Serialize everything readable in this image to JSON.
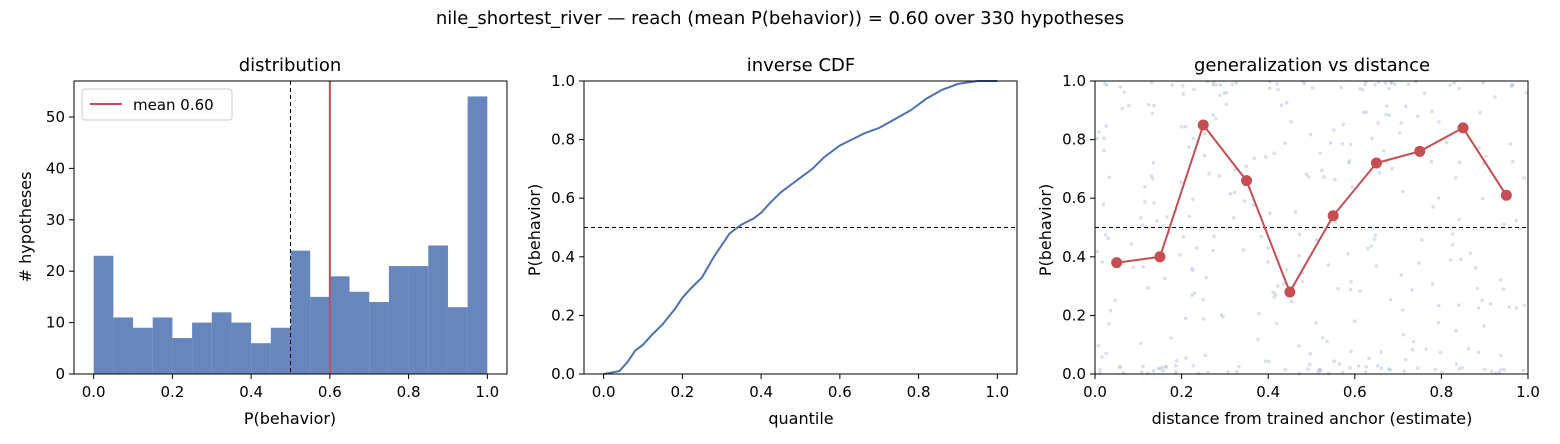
{
  "figure": {
    "suptitle": "nile_shortest_river  —  reach (mean P(behavior)) = 0.60  over 330 hypotheses"
  },
  "colors": {
    "bar": "#4c72b0",
    "mean_line": "#c44e52",
    "cdf_line": "#4c72b0",
    "scatter_points": "#a8b8d8",
    "binned_line": "#c44e52",
    "reference_line": "#000000"
  },
  "chart_data": [
    {
      "type": "bar",
      "title": "distribution",
      "xlabel": "P(behavior)",
      "ylabel": "# hypotheses",
      "bin_edges": [
        0.0,
        0.05,
        0.1,
        0.15,
        0.2,
        0.25,
        0.3,
        0.35,
        0.4,
        0.45,
        0.5,
        0.55,
        0.6,
        0.65,
        0.7,
        0.75,
        0.8,
        0.85,
        0.9,
        0.95,
        1.0
      ],
      "values": [
        23,
        11,
        9,
        11,
        7,
        10,
        12,
        10,
        6,
        9,
        24,
        15,
        19,
        16,
        14,
        21,
        21,
        25,
        13,
        54
      ],
      "xlim": [
        -0.05,
        1.05
      ],
      "ylim": [
        0,
        57
      ],
      "xticks": [
        "0.0",
        "0.2",
        "0.4",
        "0.6",
        "0.8",
        "1.0"
      ],
      "yticks": [
        "0",
        "10",
        "20",
        "30",
        "40",
        "50"
      ],
      "threshold_line": 0.5,
      "mean_line": 0.6,
      "legend": {
        "label": "mean 0.60",
        "placement": "upper left"
      }
    },
    {
      "type": "line",
      "title": "inverse CDF",
      "xlabel": "quantile",
      "ylabel": "P(behavior)",
      "points": [
        [
          0.0,
          0.0
        ],
        [
          0.04,
          0.01
        ],
        [
          0.06,
          0.04
        ],
        [
          0.08,
          0.08
        ],
        [
          0.1,
          0.1
        ],
        [
          0.12,
          0.13
        ],
        [
          0.15,
          0.17
        ],
        [
          0.18,
          0.22
        ],
        [
          0.2,
          0.26
        ],
        [
          0.22,
          0.29
        ],
        [
          0.25,
          0.33
        ],
        [
          0.28,
          0.4
        ],
        [
          0.3,
          0.44
        ],
        [
          0.32,
          0.48
        ],
        [
          0.35,
          0.51
        ],
        [
          0.38,
          0.53
        ],
        [
          0.4,
          0.55
        ],
        [
          0.42,
          0.58
        ],
        [
          0.45,
          0.62
        ],
        [
          0.48,
          0.65
        ],
        [
          0.5,
          0.67
        ],
        [
          0.53,
          0.7
        ],
        [
          0.56,
          0.74
        ],
        [
          0.6,
          0.78
        ],
        [
          0.63,
          0.8
        ],
        [
          0.66,
          0.82
        ],
        [
          0.7,
          0.84
        ],
        [
          0.74,
          0.87
        ],
        [
          0.78,
          0.9
        ],
        [
          0.82,
          0.94
        ],
        [
          0.86,
          0.97
        ],
        [
          0.9,
          0.99
        ],
        [
          0.95,
          1.0
        ],
        [
          1.0,
          1.0
        ]
      ],
      "xlim": [
        -0.05,
        1.05
      ],
      "ylim": [
        0,
        1.0
      ],
      "xticks": [
        "0.0",
        "0.2",
        "0.4",
        "0.6",
        "0.8",
        "1.0"
      ],
      "yticks": [
        "0.0",
        "0.2",
        "0.4",
        "0.6",
        "0.8",
        "1.0"
      ],
      "threshold_line": 0.5
    },
    {
      "type": "scatter",
      "title": "generalization vs distance",
      "xlabel": "distance from trained anchor (estimate)",
      "ylabel": "P(behavior)",
      "binned_points": [
        [
          0.05,
          0.38
        ],
        [
          0.15,
          0.4
        ],
        [
          0.25,
          0.85
        ],
        [
          0.35,
          0.66
        ],
        [
          0.45,
          0.28
        ],
        [
          0.55,
          0.54
        ],
        [
          0.65,
          0.72
        ],
        [
          0.75,
          0.76
        ],
        [
          0.85,
          0.84
        ],
        [
          0.95,
          0.61
        ]
      ],
      "xlim": [
        0,
        1.0
      ],
      "ylim": [
        0,
        1.0
      ],
      "xticks": [
        "0.0",
        "0.2",
        "0.4",
        "0.6",
        "0.8",
        "1.0"
      ],
      "yticks": [
        "0.0",
        "0.2",
        "0.4",
        "0.6",
        "0.8",
        "1.0"
      ],
      "threshold_line": 0.5,
      "background_points": 330
    }
  ]
}
